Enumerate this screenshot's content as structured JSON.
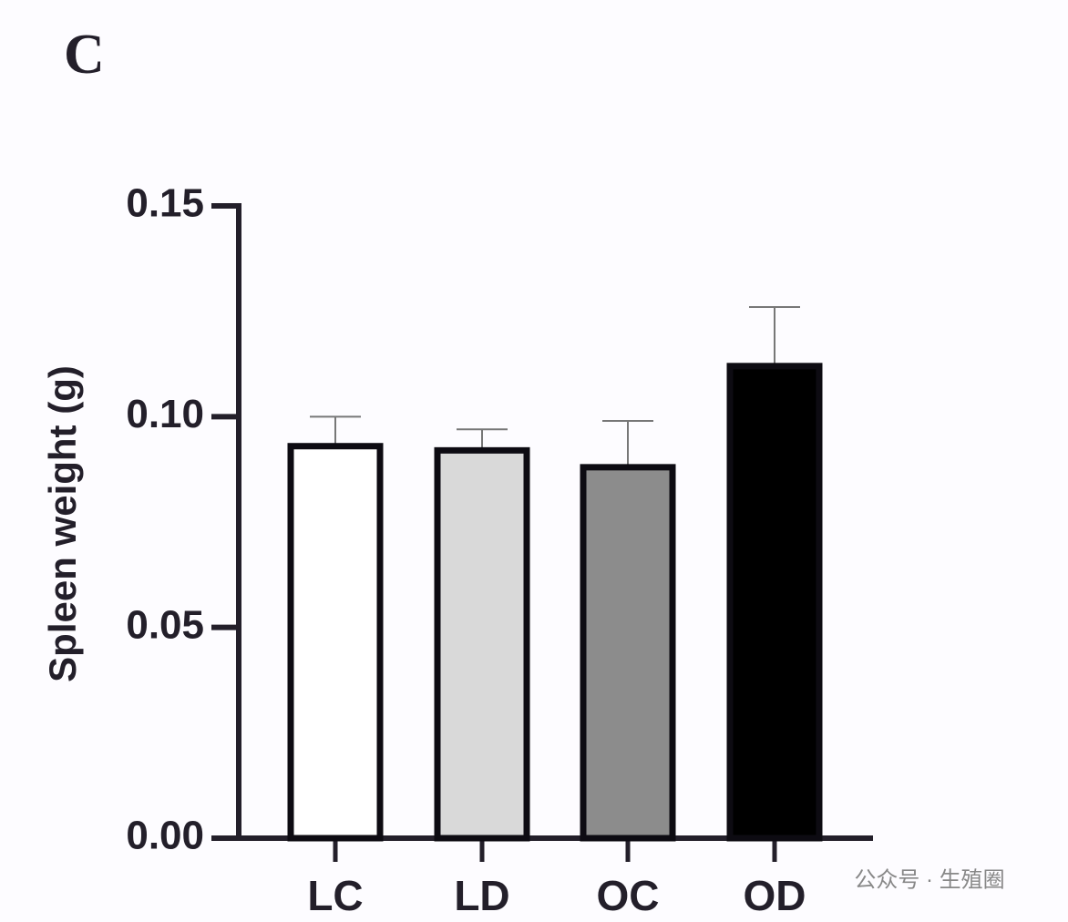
{
  "chart_data": {
    "type": "bar",
    "panel_label": "C",
    "ylabel": "Spleen weight (g)",
    "categories": [
      "LC",
      "LD",
      "OC",
      "OD"
    ],
    "values": [
      0.093,
      0.092,
      0.088,
      0.112
    ],
    "errors": [
      0.007,
      0.005,
      0.011,
      0.014
    ],
    "colors": [
      "#ffffff",
      "#d9d9d9",
      "#8c8c8c",
      "#000000"
    ],
    "ylim": [
      0,
      0.15
    ],
    "yticks": [
      {
        "value": 0,
        "label": "0.00"
      },
      0.05,
      {
        "value": 0.1,
        "label": "0.10"
      },
      0.15
    ]
  },
  "watermark": "公众号 · 生殖圈"
}
